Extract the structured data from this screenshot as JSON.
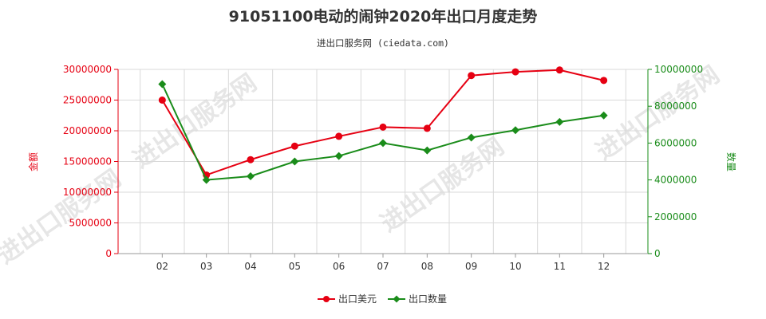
{
  "chart_data": {
    "type": "line",
    "title": "91051100电动的闹钟2020年出口月度走势",
    "subtitle": "进出口服务网 (ciedata.com)",
    "watermark": "进出口服务网",
    "categories": [
      "02",
      "03",
      "04",
      "05",
      "06",
      "07",
      "08",
      "09",
      "10",
      "11",
      "12"
    ],
    "y_left": {
      "label": "金额",
      "ylim": [
        0,
        30000000
      ],
      "ticks": [
        "0",
        "5000000",
        "10000000",
        "15000000",
        "20000000",
        "25000000",
        "30000000"
      ],
      "color": "#e60012"
    },
    "y_right": {
      "label": "数量",
      "ylim": [
        0,
        10000000
      ],
      "ticks": [
        "0",
        "2000000",
        "4000000",
        "6000000",
        "8000000",
        "10000000"
      ],
      "color": "#1a8c1a"
    },
    "series": [
      {
        "name": "出口美元",
        "axis": "left",
        "color": "#e60012",
        "values": [
          25000000,
          12800000,
          15300000,
          17500000,
          19100000,
          20600000,
          20400000,
          29000000,
          29600000,
          29900000,
          28200000
        ]
      },
      {
        "name": "出口数量",
        "axis": "right",
        "color": "#1a8c1a",
        "values": [
          9200000,
          4000000,
          4200000,
          5000000,
          5300000,
          6000000,
          5600000,
          6300000,
          6700000,
          7150000,
          7500000
        ]
      }
    ],
    "grid": true,
    "legend": "bottom-center"
  }
}
